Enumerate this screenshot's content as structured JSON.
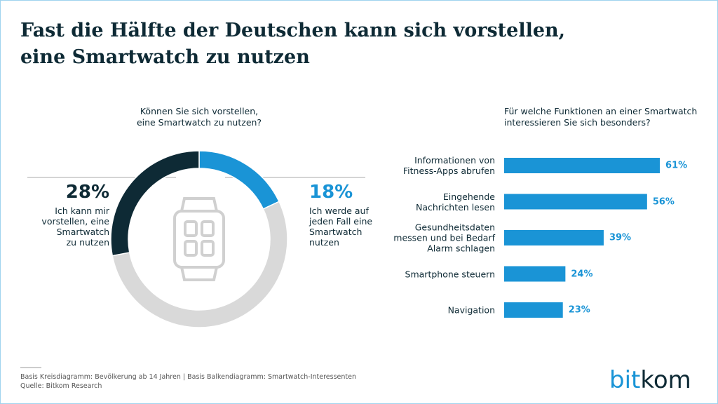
{
  "title": "Fast die Hälfte der Deutschen kann sich vorstellen,\neine Smartwatch zu nutzen",
  "chart_data": [
    {
      "type": "donut",
      "subtitle": "Können Sie sich vorstellen,\neine Smartwatch zu nutzen?",
      "categories": [
        "Ich werde auf\njeden Fall eine\nSmartwatch\nnutzen",
        null,
        "Ich kann mir\nvorstellen, eine\nSmartwatch\nzu nutzen"
      ],
      "values": [
        18,
        54,
        28
      ],
      "value_labels": [
        "18%",
        null,
        "28%"
      ],
      "colors": [
        "#1a94d6",
        "#d9d9d9",
        "#0e2a35"
      ]
    },
    {
      "type": "hbar",
      "subtitle": "Für welche Funktionen an einer Smartwatch\ninteressieren Sie sich besonders?",
      "categories": [
        "Informationen von\nFitness-Apps abrufen",
        "Eingehende\nNachrichten lesen",
        "Gesundheitsdaten\nmessen und bei Bedarf\nAlarm schlagen",
        "Smartphone steuern",
        "Navigation"
      ],
      "values": [
        61,
        56,
        39,
        24,
        23
      ],
      "value_labels": [
        "61%",
        "56%",
        "39%",
        "24%",
        "23%"
      ],
      "color": "#1a94d6"
    }
  ],
  "footer": {
    "note": "Basis Kreisdiagramm: Bevölkerung ab 14 Jahren | Basis Balkendiagramm: Smartwatch-Interessenten",
    "source": "Quelle: Bitkom Research"
  },
  "logo": [
    "bit",
    "kom"
  ]
}
